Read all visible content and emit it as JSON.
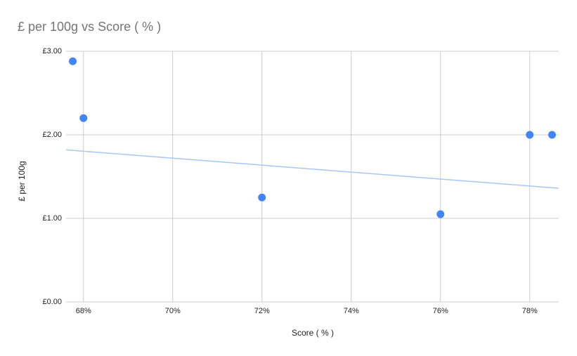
{
  "chart_data": {
    "type": "scatter",
    "title": "£ per 100g vs Score ( % )",
    "x_label": "Score ( % )",
    "y_label": "£ per 100g",
    "series": [
      {
        "name": "£ per 100g",
        "color": "#4285f4",
        "x": [
          67.76,
          68,
          72,
          76,
          78,
          78.5
        ],
        "values": [
          2.88,
          2.2,
          1.25,
          1.05,
          2.0,
          2.0
        ]
      }
    ],
    "trendline": {
      "type": "linear",
      "color": "#a7c7f5",
      "x": [
        67.61,
        78.65
      ],
      "values": [
        1.82,
        1.36
      ]
    },
    "xlim": [
      67.61,
      78.65
    ],
    "xticks": [
      {
        "value": 68,
        "label": "68%"
      },
      {
        "value": 70,
        "label": "70%"
      },
      {
        "value": 72,
        "label": "72%"
      },
      {
        "value": 74,
        "label": "74%"
      },
      {
        "value": 76,
        "label": "76%"
      },
      {
        "value": 78,
        "label": "78%"
      }
    ],
    "ylim": [
      0,
      3
    ],
    "yticks": [
      {
        "value": 0,
        "label": "£0.00"
      },
      {
        "value": 1,
        "label": "£1.00"
      },
      {
        "value": 2,
        "label": "£2.00"
      },
      {
        "value": 3,
        "label": "£3.00"
      }
    ],
    "grid": true
  }
}
